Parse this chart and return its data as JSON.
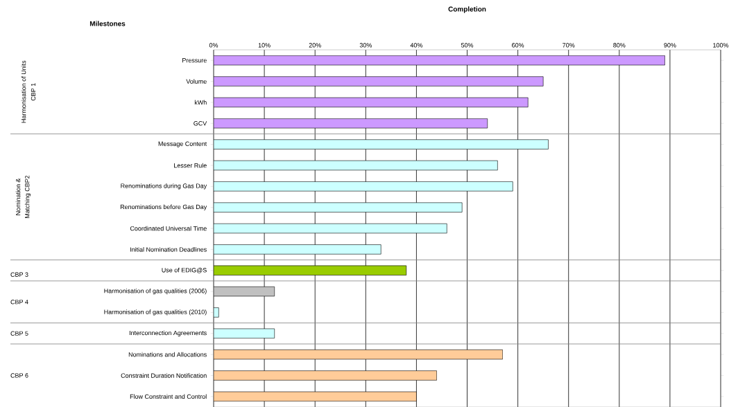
{
  "chart_data": {
    "type": "bar",
    "orientation": "horizontal",
    "xlabel": "Completion",
    "ylabel": "Milestones",
    "categories": [
      "Pressure",
      "Volume",
      "kWh",
      "GCV",
      "Message Content",
      "Lesser Rule",
      "Renominations during Gas Day",
      "Renominations before Gas Day",
      "Coordinated Universal Time",
      "Initial Nomination Deadlines",
      "Use of EDIG@S",
      "Harmonisation of gas qualities (2006)",
      "Harmonisation of gas qualities (2010)",
      "Interconnection Agreements",
      "Nominations and Allocations",
      "Constraint Duration Notification",
      "Flow Constraint and Control"
    ],
    "values": [
      89,
      65,
      62,
      54,
      66,
      56,
      59,
      49,
      46,
      33,
      38,
      12,
      1,
      12,
      57,
      44,
      40
    ],
    "colors": [
      "#cc99ff",
      "#cc99ff",
      "#cc99ff",
      "#cc99ff",
      "#ccffff",
      "#ccffff",
      "#ccffff",
      "#ccffff",
      "#ccffff",
      "#ccffff",
      "#99cc00",
      "#c0c0c0",
      "#ccffff",
      "#ccffff",
      "#ffcc99",
      "#ffcc99",
      "#ffcc99"
    ],
    "xlim": [
      0,
      100
    ],
    "xticks": [
      {
        "value": 0,
        "label": "0%"
      },
      {
        "value": 10,
        "label": "10%"
      },
      {
        "value": 20,
        "label": "20%"
      },
      {
        "value": 30,
        "label": "30%"
      },
      {
        "value": 40,
        "label": "40%"
      },
      {
        "value": 50,
        "label": "50%"
      },
      {
        "value": 60,
        "label": "60%"
      },
      {
        "value": 70,
        "label": "70%"
      },
      {
        "value": 80,
        "label": "80%"
      },
      {
        "value": 90,
        "label": "90%"
      },
      {
        "value": 100,
        "label": "100%"
      }
    ],
    "grid": "x",
    "annotations": [
      "Harmonisation of Units",
      "CBP 1",
      "Nomination &",
      "Matching CBP2",
      "CBP 3",
      "CBP 4",
      "CBP 5",
      "CBP 6"
    ]
  }
}
